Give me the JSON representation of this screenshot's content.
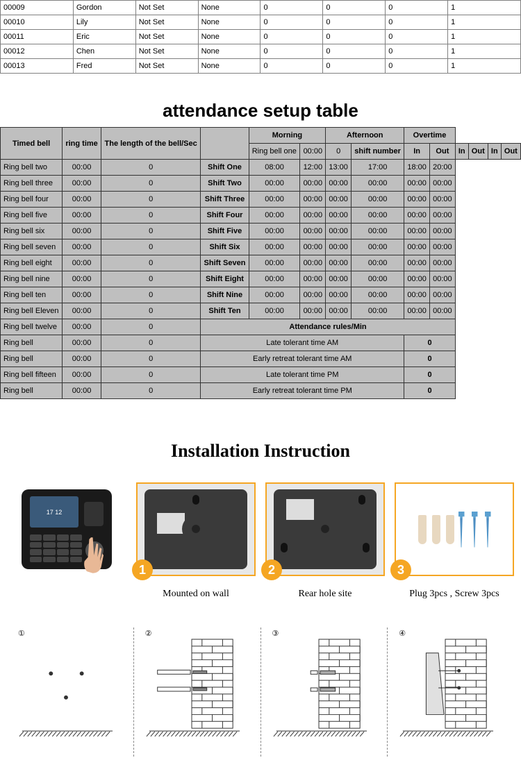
{
  "employee_table": {
    "rows": [
      [
        "00009",
        "Gordon",
        "Not Set",
        "None",
        "0",
        "0",
        "0",
        "1"
      ],
      [
        "00010",
        "Lily",
        "Not Set",
        "None",
        "0",
        "0",
        "0",
        "1"
      ],
      [
        "00011",
        "Eric",
        "Not Set",
        "None",
        "0",
        "0",
        "0",
        "1"
      ],
      [
        "00012",
        "Chen",
        "Not Set",
        "None",
        "0",
        "0",
        "0",
        "1"
      ],
      [
        "00013",
        "Fred",
        "Not Set",
        "None",
        "0",
        "0",
        "0",
        "1"
      ]
    ],
    "col_widths": [
      "14%",
      "12%",
      "12%",
      "12%",
      "12%",
      "12%",
      "12%",
      "14%"
    ]
  },
  "attendance_table": {
    "title": "attendance setup table",
    "headers": {
      "timed_bell": "Timed bell",
      "ring_time": "ring time",
      "bell_length": "The length of the bell/Sec",
      "morning": "Morning",
      "afternoon": "Afternoon",
      "overtime": "Overtime",
      "shift_number": "shift number",
      "in": "In",
      "out": "Out"
    },
    "bell_rows": [
      {
        "name": "Ring bell one",
        "time": "00:00",
        "len": "0"
      },
      {
        "name": "Ring bell two",
        "time": "00:00",
        "len": "0"
      },
      {
        "name": "Ring bell three",
        "time": "00:00",
        "len": "0"
      },
      {
        "name": "Ring bell four",
        "time": "00:00",
        "len": "0"
      },
      {
        "name": "Ring bell five",
        "time": "00:00",
        "len": "0"
      },
      {
        "name": "Ring bell six",
        "time": "00:00",
        "len": "0"
      },
      {
        "name": "Ring bell seven",
        "time": "00:00",
        "len": "0"
      },
      {
        "name": "Ring bell eight",
        "time": "00:00",
        "len": "0"
      },
      {
        "name": "Ring bell nine",
        "time": "00:00",
        "len": "0"
      },
      {
        "name": "Ring bell ten",
        "time": "00:00",
        "len": "0"
      },
      {
        "name": "Ring bell Eleven",
        "time": "00:00",
        "len": "0"
      },
      {
        "name": "Ring bell twelve",
        "time": "00:00",
        "len": "0"
      },
      {
        "name": "Ring bell",
        "time": "00:00",
        "len": "0"
      },
      {
        "name": "Ring bell",
        "time": "00:00",
        "len": "0"
      },
      {
        "name": "Ring bell fifteen",
        "time": "00:00",
        "len": "0"
      },
      {
        "name": "Ring bell",
        "time": "00:00",
        "len": "0"
      }
    ],
    "shift_rows": [
      {
        "name": "Shift One",
        "m_in": "08:00",
        "m_out": "12:00",
        "a_in": "13:00",
        "a_out": "17:00",
        "o_in": "18:00",
        "o_out": "20:00"
      },
      {
        "name": "Shift Two",
        "m_in": "00:00",
        "m_out": "00:00",
        "a_in": "00:00",
        "a_out": "00:00",
        "o_in": "00:00",
        "o_out": "00:00"
      },
      {
        "name": "Shift Three",
        "m_in": "00:00",
        "m_out": "00:00",
        "a_in": "00:00",
        "a_out": "00:00",
        "o_in": "00:00",
        "o_out": "00:00"
      },
      {
        "name": "Shift Four",
        "m_in": "00:00",
        "m_out": "00:00",
        "a_in": "00:00",
        "a_out": "00:00",
        "o_in": "00:00",
        "o_out": "00:00"
      },
      {
        "name": "Shift Five",
        "m_in": "00:00",
        "m_out": "00:00",
        "a_in": "00:00",
        "a_out": "00:00",
        "o_in": "00:00",
        "o_out": "00:00"
      },
      {
        "name": "Shift Six",
        "m_in": "00:00",
        "m_out": "00:00",
        "a_in": "00:00",
        "a_out": "00:00",
        "o_in": "00:00",
        "o_out": "00:00"
      },
      {
        "name": "Shift Seven",
        "m_in": "00:00",
        "m_out": "00:00",
        "a_in": "00:00",
        "a_out": "00:00",
        "o_in": "00:00",
        "o_out": "00:00"
      },
      {
        "name": "Shift Eight",
        "m_in": "00:00",
        "m_out": "00:00",
        "a_in": "00:00",
        "a_out": "00:00",
        "o_in": "00:00",
        "o_out": "00:00"
      },
      {
        "name": "Shift Nine",
        "m_in": "00:00",
        "m_out": "00:00",
        "a_in": "00:00",
        "a_out": "00:00",
        "o_in": "00:00",
        "o_out": "00:00"
      },
      {
        "name": "Shift Ten",
        "m_in": "00:00",
        "m_out": "00:00",
        "a_in": "00:00",
        "a_out": "00:00",
        "o_in": "00:00",
        "o_out": "00:00"
      }
    ],
    "rules_header": "Attendance rules/Min",
    "rules": [
      {
        "label": "Late tolerant time AM",
        "value": "0"
      },
      {
        "label": "Early retreat tolerant time AM",
        "value": "0"
      },
      {
        "label": "Late tolerant time PM",
        "value": "0"
      },
      {
        "label": "Early retreat tolerant time PM",
        "value": "0"
      }
    ]
  },
  "installation": {
    "title": "Installation Instruction",
    "items": [
      {
        "num": "",
        "label": "",
        "type": "device"
      },
      {
        "num": "1",
        "label": "Mounted on wall",
        "type": "rear1"
      },
      {
        "num": "2",
        "label": "Rear hole site",
        "type": "rear2"
      },
      {
        "num": "3",
        "label": "Plug 3pcs , Screw 3pcs",
        "type": "hardware"
      }
    ],
    "device_time": "17 12",
    "steps": [
      "①",
      "②",
      "③",
      "④"
    ]
  },
  "colors": {
    "table_bg": "#bfbfbf",
    "border": "#333333",
    "accent": "#f5a623",
    "screw": "#5ba0d0"
  }
}
